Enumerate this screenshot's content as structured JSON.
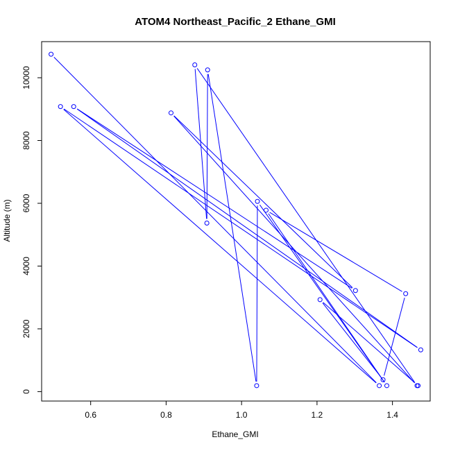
{
  "chart_data": {
    "type": "line",
    "title": "ATOM4 Northeast_Pacific_2 Ethane_GMI",
    "xlabel": "Ethane_GMI",
    "ylabel": "Altitude (m)",
    "xlim": [
      0.47,
      1.5
    ],
    "ylim": [
      -300,
      11150
    ],
    "x_ticks": [
      0.6,
      0.8,
      1.0,
      1.2,
      1.4
    ],
    "x_tick_labels": [
      "0.6",
      "0.8",
      "1.0",
      "1.2",
      "1.4"
    ],
    "y_ticks": [
      0,
      2000,
      4000,
      6000,
      8000,
      10000
    ],
    "y_tick_labels": [
      "0",
      "2000",
      "4000",
      "6000",
      "8000",
      "10000"
    ],
    "grid": false,
    "marker": "open-circle",
    "color": "#0000ff",
    "series": [
      {
        "points": [
          {
            "x": 0.495,
            "y": 10750
          },
          {
            "x": 1.365,
            "y": 190
          },
          {
            "x": 0.52,
            "y": 9080
          },
          {
            "x": 1.475,
            "y": 1330
          },
          {
            "x": 0.555,
            "y": 9080
          },
          {
            "x": 1.302,
            "y": 3220
          },
          {
            "x": 0.813,
            "y": 8880
          },
          {
            "x": 1.465,
            "y": 190
          },
          {
            "x": 0.876,
            "y": 10410
          },
          {
            "x": 0.908,
            "y": 5370
          },
          {
            "x": 0.91,
            "y": 10250
          },
          {
            "x": 1.04,
            "y": 190
          },
          {
            "x": 1.042,
            "y": 6060
          },
          {
            "x": 1.385,
            "y": 190
          },
          {
            "x": 1.065,
            "y": 5780
          },
          {
            "x": 1.435,
            "y": 3120
          },
          {
            "x": 1.375,
            "y": 380
          },
          {
            "x": 1.208,
            "y": 2930
          },
          {
            "x": 1.468,
            "y": 190
          }
        ]
      }
    ]
  }
}
